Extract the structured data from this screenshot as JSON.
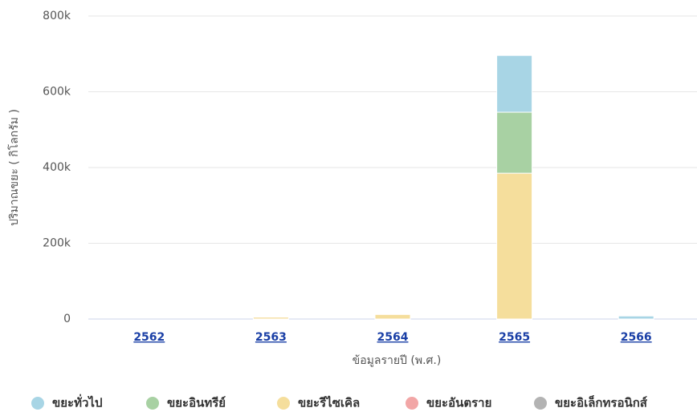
{
  "chart_data": {
    "type": "bar",
    "stacked": true,
    "y_label": "ปริมาณขยะ ( กิโลกรัม )",
    "x_label": "ข้อมูลรายปี (พ.ศ.)",
    "categories": [
      "2562",
      "2563",
      "2564",
      "2565",
      "2566"
    ],
    "series": [
      {
        "name": "ขยะทั่วไป",
        "color": "#a8d5e5",
        "values": [
          0,
          0,
          0,
          150000,
          8000
        ]
      },
      {
        "name": "ขยะอินทรีย์",
        "color": "#a8d1a3",
        "values": [
          0,
          0,
          0,
          161000,
          0
        ]
      },
      {
        "name": "ขยะรีไซเคิล",
        "color": "#f5de9c",
        "values": [
          0,
          5000,
          12000,
          385000,
          0
        ]
      },
      {
        "name": "ขยะอันตราย",
        "color": "#f2a6a6",
        "values": [
          0,
          0,
          0,
          0,
          0
        ]
      },
      {
        "name": "ขยะอิเล็กทรอนิกส์",
        "color": "#b3b3b3",
        "values": [
          0,
          0,
          0,
          0,
          0
        ]
      }
    ],
    "ylim": [
      0,
      800000
    ],
    "yticks": [
      0,
      {
        "value": 200000,
        "label": "200k"
      },
      {
        "value": 400000,
        "label": "400k"
      },
      {
        "value": 600000,
        "label": "600k"
      },
      {
        "value": 800000,
        "label": "800k"
      }
    ],
    "grid": true,
    "legend": "bottom"
  }
}
